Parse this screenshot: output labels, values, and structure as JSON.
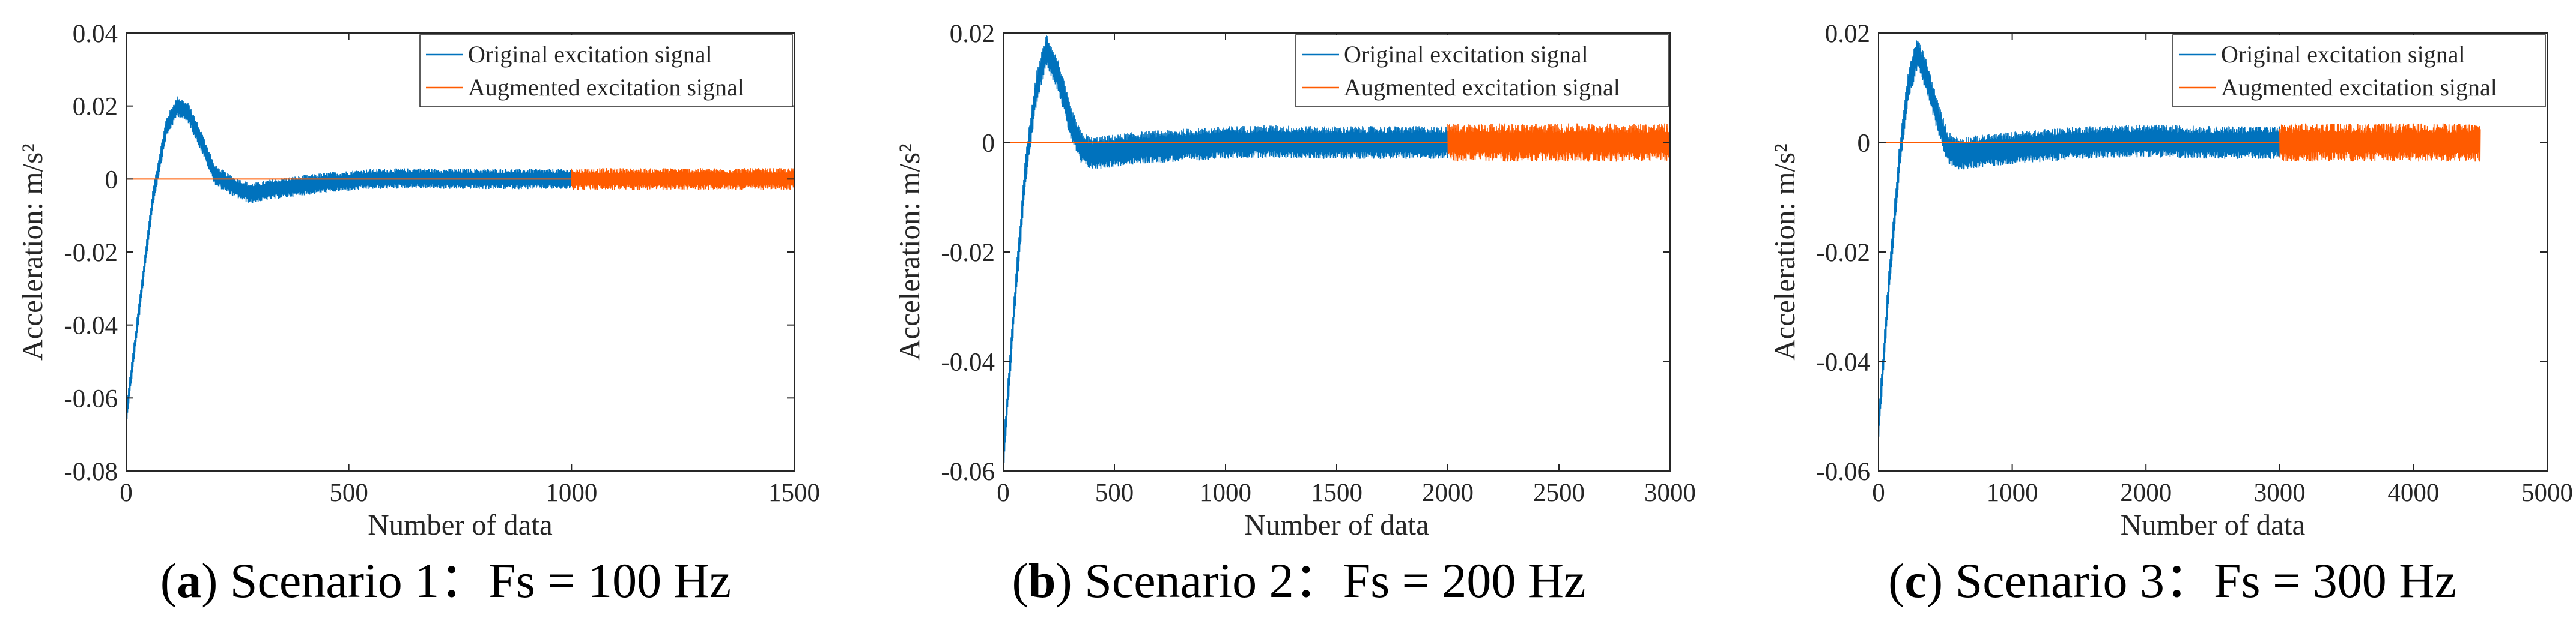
{
  "chart_data": [
    {
      "type": "line",
      "panel": "a",
      "caption_label": "a",
      "caption_text": "Scenario 1：Fs = 100 Hz",
      "xlabel": "Number of data",
      "ylabel": "Acceleration: m/s²",
      "xlim": [
        0,
        1500
      ],
      "ylim": [
        -0.08,
        0.04
      ],
      "xticks": [
        0,
        500,
        1000,
        1500
      ],
      "xtick_labels": [
        "0",
        "500",
        "1000",
        "1500"
      ],
      "yticks": [
        -0.08,
        -0.06,
        -0.04,
        -0.02,
        0,
        0.02,
        0.04
      ],
      "ytick_labels": [
        "-0.08",
        "-0.06",
        "-0.04",
        "-0.02",
        "0",
        "0.02",
        "0.04"
      ],
      "legend_position": "top-right",
      "series": [
        {
          "name": "Original excitation signal",
          "color": "#0072BD",
          "x": [
            0,
            30,
            60,
            90,
            115,
            140,
            170,
            200,
            240,
            280,
            320,
            380,
            450,
            550,
            650,
            750,
            850,
            950,
            1000
          ],
          "y": [
            -0.065,
            -0.035,
            -0.005,
            0.014,
            0.02,
            0.018,
            0.01,
            0.001,
            -0.002,
            -0.004,
            -0.003,
            -0.002,
            -0.001,
            0.0,
            0.0002,
            0.0,
            0.0,
            0.0,
            0.0
          ],
          "noise_amplitude": 0.0028
        },
        {
          "name": "Augmented excitation signal",
          "color": "#FF5B00",
          "x": [
            0,
            1000,
            1500
          ],
          "y": [
            0,
            0,
            0
          ],
          "noise_start": 1000,
          "noise_amplitude": 0.003
        }
      ]
    },
    {
      "type": "line",
      "panel": "b",
      "caption_label": "b",
      "caption_text": "Scenario 2：Fs = 200 Hz",
      "xlabel": "Number of data",
      "ylabel": "Acceleration: m/s²",
      "xlim": [
        0,
        3000
      ],
      "ylim": [
        -0.06,
        0.02
      ],
      "xticks": [
        0,
        500,
        1000,
        1500,
        2000,
        2500,
        3000
      ],
      "xtick_labels": [
        "0",
        "500",
        "1000",
        "1500",
        "2000",
        "2500",
        "3000"
      ],
      "yticks": [
        -0.06,
        -0.04,
        -0.02,
        0,
        0.02
      ],
      "ytick_labels": [
        "-0.06",
        "-0.04",
        "-0.02",
        "0",
        "0.02"
      ],
      "legend_position": "top-right",
      "series": [
        {
          "name": "Original excitation signal",
          "color": "#0072BD",
          "x": [
            0,
            50,
            100,
            150,
            195,
            250,
            300,
            350,
            400,
            500,
            600,
            800,
            1000,
            1200,
            1400,
            1600,
            1800,
            2000
          ],
          "y": [
            -0.058,
            -0.03,
            -0.005,
            0.01,
            0.017,
            0.012,
            0.004,
            -0.001,
            -0.002,
            -0.0015,
            -0.001,
            -0.0005,
            0.0,
            0.0002,
            0.0,
            0.0,
            0.0,
            0.0
          ],
          "noise_amplitude": 0.003
        },
        {
          "name": "Augmented excitation signal",
          "color": "#FF5B00",
          "x": [
            0,
            2000,
            3000
          ],
          "y": [
            0,
            0,
            0
          ],
          "noise_start": 2000,
          "noise_amplitude": 0.0035
        }
      ]
    },
    {
      "type": "line",
      "panel": "c",
      "caption_label": "c",
      "caption_text": "Scenario 3：Fs = 300 Hz",
      "xlabel": "Number of data",
      "ylabel": "Acceleration: m/s²",
      "xlim": [
        0,
        5000
      ],
      "ylim": [
        -0.06,
        0.02
      ],
      "xticks": [
        0,
        1000,
        2000,
        3000,
        4000,
        5000
      ],
      "xtick_labels": [
        "0",
        "1000",
        "2000",
        "3000",
        "4000",
        "5000"
      ],
      "yticks": [
        -0.06,
        -0.04,
        -0.02,
        0,
        0.02
      ],
      "ytick_labels": [
        "-0.06",
        "-0.04",
        "-0.02",
        "0",
        "0.02"
      ],
      "legend_position": "top-right",
      "series": [
        {
          "name": "Original excitation signal",
          "color": "#0072BD",
          "x": [
            0,
            80,
            160,
            220,
            290,
            360,
            450,
            520,
            600,
            800,
            1000,
            1500,
            2000,
            2500,
            3000
          ],
          "y": [
            -0.052,
            -0.025,
            -0.002,
            0.01,
            0.0165,
            0.012,
            0.004,
            -0.001,
            -0.002,
            -0.0015,
            -0.001,
            0.0,
            0.0003,
            0.0,
            0.0
          ],
          "noise_amplitude": 0.003
        },
        {
          "name": "Augmented excitation signal",
          "color": "#FF5B00",
          "x": [
            0,
            3000,
            4500
          ],
          "y": [
            0,
            0,
            0
          ],
          "noise_start": 3000,
          "noise_amplitude": 0.0035
        }
      ]
    }
  ]
}
